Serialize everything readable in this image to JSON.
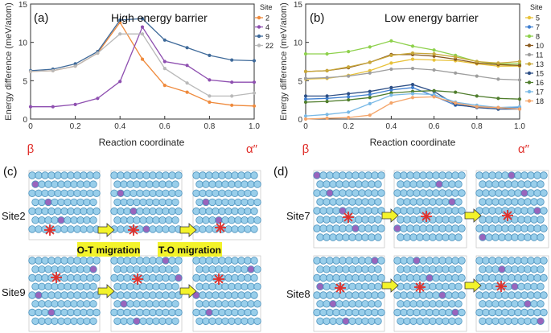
{
  "colors": {
    "axis": "#333333",
    "endpoint_label": "#e0302b",
    "atom_fill": "#8ec9e8",
    "atom_stroke": "#3a88b8",
    "atom_purple": "#8e55b5",
    "arrow_fill": "#f3f32a",
    "arrow_stroke": "#333333",
    "star": "#e0302b",
    "banner": "#f3f32a"
  },
  "chart_data": [
    {
      "id": "a",
      "type": "line",
      "panel_label": "(a)",
      "title": "High energy barrier",
      "ylabel": "Energy difference (meV/atom)",
      "xlabel": "Reaction coordinate",
      "xlim": [
        0,
        1
      ],
      "ylim": [
        0,
        15
      ],
      "xticks": [
        "0",
        "0.2",
        "0.4",
        "0.6",
        "0.8",
        "1.0"
      ],
      "yticks": [
        "0",
        "5",
        "10",
        "15"
      ],
      "endpoint_left": "β",
      "endpoint_right": "α″",
      "legend_title": "Site",
      "x": [
        0,
        0.1,
        0.2,
        0.3,
        0.4,
        0.5,
        0.6,
        0.7,
        0.8,
        0.9,
        1.0
      ],
      "series": [
        {
          "name": "2",
          "color": "#ef8a3c",
          "values": [
            6.2,
            6.3,
            6.9,
            8.6,
            12.6,
            7.8,
            4.4,
            3.5,
            2.2,
            1.8,
            1.7
          ]
        },
        {
          "name": "4",
          "color": "#8e4fb0",
          "values": [
            1.6,
            1.6,
            1.9,
            2.7,
            4.9,
            12.0,
            7.5,
            7.0,
            5.1,
            4.8,
            4.8
          ]
        },
        {
          "name": "9",
          "color": "#3f6a9a",
          "values": [
            6.3,
            6.5,
            7.2,
            8.8,
            12.9,
            13.1,
            10.3,
            9.3,
            8.3,
            7.7,
            7.6
          ]
        },
        {
          "name": "22",
          "color": "#b9b9b9",
          "values": [
            6.2,
            6.3,
            6.9,
            8.6,
            11.1,
            11.1,
            6.6,
            4.7,
            3.0,
            3.0,
            3.4
          ]
        }
      ]
    },
    {
      "id": "b",
      "type": "line",
      "panel_label": "(b)",
      "title": "Low energy barrier",
      "ylabel": "Energy difference (meV/atom)",
      "xlabel": "Reaction coordinate",
      "xlim": [
        0,
        1
      ],
      "ylim": [
        0,
        15
      ],
      "xticks": [
        "0",
        "0.2",
        "0.4",
        "0.6",
        "0.8",
        "1.0"
      ],
      "yticks": [
        "0",
        "5",
        "10",
        "15"
      ],
      "endpoint_left": "β",
      "endpoint_right": "α″",
      "legend_title": "Site",
      "x": [
        0,
        0.1,
        0.2,
        0.3,
        0.4,
        0.5,
        0.6,
        0.7,
        0.8,
        0.9,
        1.0
      ],
      "series": [
        {
          "name": "5",
          "color": "#e8c23a",
          "values": [
            5.2,
            5.3,
            5.7,
            6.3,
            7.3,
            7.8,
            7.7,
            7.6,
            7.2,
            6.9,
            6.9
          ]
        },
        {
          "name": "7",
          "color": "#3f7fd0",
          "values": [
            2.6,
            2.7,
            2.9,
            3.2,
            3.8,
            4.1,
            3.0,
            1.8,
            1.6,
            1.5,
            1.5
          ]
        },
        {
          "name": "8",
          "color": "#8ed14c",
          "values": [
            8.5,
            8.5,
            8.8,
            9.4,
            10.2,
            9.5,
            9.0,
            8.3,
            7.5,
            7.2,
            7.2
          ]
        },
        {
          "name": "10",
          "color": "#8a5a1e",
          "values": [
            6.2,
            6.3,
            6.7,
            7.4,
            8.4,
            8.4,
            8.2,
            7.8,
            7.3,
            7.1,
            7.0
          ]
        },
        {
          "name": "11",
          "color": "#9e9e9e",
          "values": [
            5.3,
            5.4,
            5.6,
            6.0,
            6.5,
            6.6,
            6.4,
            6.0,
            5.6,
            5.2,
            5.1
          ]
        },
        {
          "name": "13",
          "color": "#c9a83a",
          "values": [
            6.2,
            6.3,
            6.8,
            7.4,
            8.3,
            8.6,
            8.5,
            8.1,
            7.5,
            7.3,
            7.5
          ]
        },
        {
          "name": "15",
          "color": "#2d4f86",
          "values": [
            3.0,
            3.0,
            3.3,
            3.6,
            4.1,
            4.5,
            3.6,
            1.9,
            1.5,
            1.3,
            1.3
          ]
        },
        {
          "name": "16",
          "color": "#4f7d2c",
          "values": [
            2.2,
            2.3,
            2.5,
            2.8,
            3.4,
            3.6,
            3.7,
            3.5,
            3.0,
            2.7,
            2.6
          ]
        },
        {
          "name": "17",
          "color": "#79b9e6",
          "values": [
            0.4,
            0.6,
            0.9,
            2.0,
            3.1,
            3.3,
            3.2,
            2.2,
            1.8,
            1.5,
            1.6
          ]
        },
        {
          "name": "18",
          "color": "#f4a56a",
          "values": [
            0.0,
            0.1,
            0.2,
            0.5,
            2.1,
            2.8,
            2.9,
            2.1,
            1.6,
            1.5,
            1.3
          ]
        }
      ]
    }
  ],
  "structures": {
    "panel_c_label": "(c)",
    "panel_d_label": "(d)",
    "c_row1_label": "Site2",
    "c_row2_label": "Site9",
    "d_row1_label": "Site7",
    "d_row2_label": "Site8",
    "migration_ot": "O-T migration",
    "migration_to": "T-O migration"
  }
}
